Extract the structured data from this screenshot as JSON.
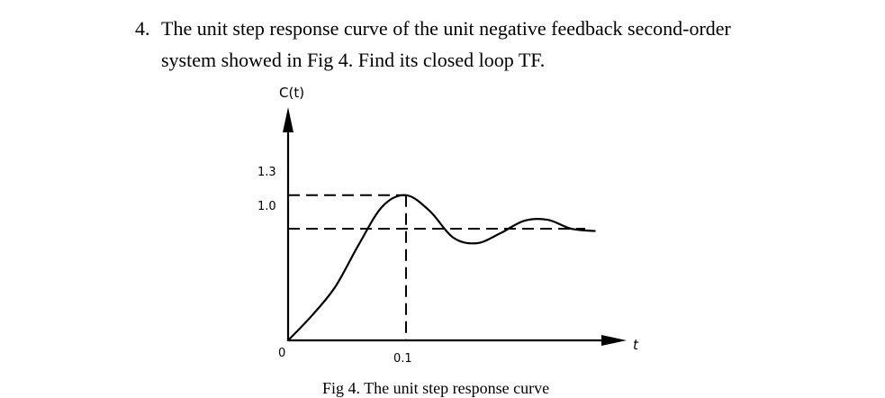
{
  "question": {
    "number": "4.",
    "line1": "The unit step response curve of the unit negative feedback second-order",
    "line2": "system showed in Fig 4. Find its closed loop TF."
  },
  "figure": {
    "caption": "Fig 4. The unit step response curve",
    "y_axis_label": "C(t)",
    "x_axis_label": "t",
    "origin_label": "0"
  },
  "chart_data": {
    "type": "line",
    "xlabel": "t",
    "ylabel": "C(t)",
    "y_ticks": [
      "1.0",
      "1.3"
    ],
    "x_ticks": [
      "0.1"
    ],
    "peak": {
      "t": 0.1,
      "value": 1.3
    },
    "steady_state": 1.0,
    "dashed_reference_lines": [
      {
        "orientation": "horizontal",
        "value": 1.3
      },
      {
        "orientation": "horizontal",
        "value": 1.0
      },
      {
        "orientation": "vertical",
        "value": 0.1
      }
    ],
    "series": [
      {
        "x": [
          0,
          0.02,
          0.04,
          0.06,
          0.08,
          0.1,
          0.12,
          0.14,
          0.16,
          0.18,
          0.2,
          0.22,
          0.24,
          0.26
        ],
        "y": [
          0,
          0.22,
          0.48,
          0.86,
          1.2,
          1.3,
          1.16,
          0.92,
          0.87,
          0.96,
          1.07,
          1.08,
          1.0,
          0.98
        ]
      }
    ],
    "colors": {
      "curve": "#000000",
      "axes": "#000000",
      "dashed": "#000000"
    }
  }
}
